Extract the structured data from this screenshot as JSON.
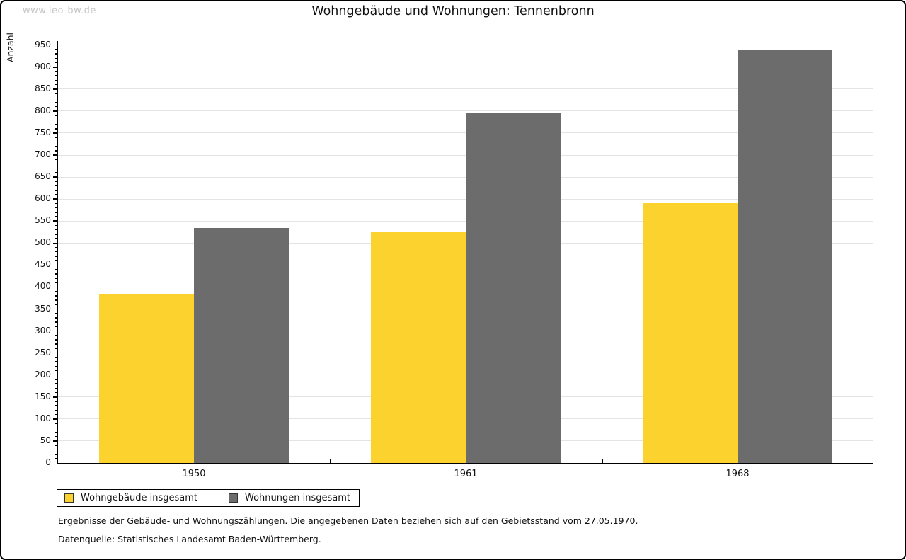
{
  "watermark": "www.leo-bw.de",
  "title": "Wohngebäude und Wohnungen: Tennenbronn",
  "chart_data": {
    "type": "bar",
    "title": "Wohngebäude und Wohnungen: Tennenbronn",
    "xlabel": "",
    "ylabel": "Anzahl",
    "categories": [
      "1950",
      "1961",
      "1968"
    ],
    "series": [
      {
        "name": "Wohngebäude insgesamt",
        "color": "#FCD32E",
        "values": [
          385,
          526,
          590
        ]
      },
      {
        "name": "Wohnungen insgesamt",
        "color": "#6C6C6C",
        "values": [
          535,
          797,
          938
        ]
      }
    ],
    "ylim": [
      0,
      950
    ],
    "ytick_major": 50,
    "ytick_minor": 10,
    "grid": true,
    "gridcolor": "#e4e4e4",
    "legend_position": "bottom-left"
  },
  "footnotes": [
    "Ergebnisse der Gebäude- und Wohnungszählungen. Die angegebenen Daten beziehen sich auf den Gebietsstand vom 27.05.1970.",
    "Datenquelle: Statistisches Landesamt Baden-Württemberg."
  ]
}
